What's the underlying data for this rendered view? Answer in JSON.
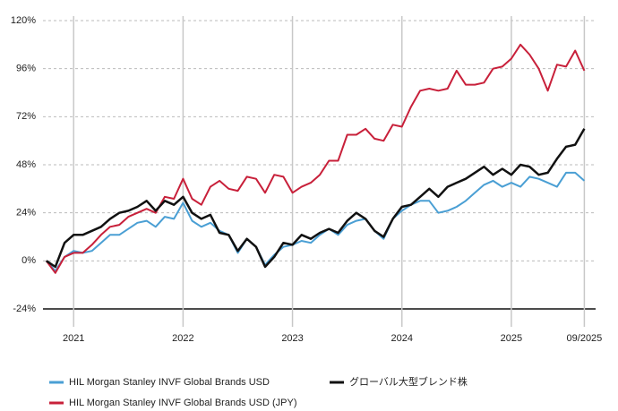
{
  "chart_data": {
    "type": "line",
    "x": [
      2020.75,
      2020.833,
      2020.917,
      2021,
      2021.083,
      2021.167,
      2021.25,
      2021.333,
      2021.417,
      2021.5,
      2021.583,
      2021.667,
      2021.75,
      2021.833,
      2021.917,
      2022,
      2022.083,
      2022.167,
      2022.25,
      2022.333,
      2022.417,
      2022.5,
      2022.583,
      2022.667,
      2022.75,
      2022.833,
      2022.917,
      2023,
      2023.083,
      2023.167,
      2023.25,
      2023.333,
      2023.417,
      2023.5,
      2023.583,
      2023.667,
      2023.75,
      2023.833,
      2023.917,
      2024,
      2024.083,
      2024.167,
      2024.25,
      2024.333,
      2024.417,
      2024.5,
      2024.583,
      2024.667,
      2024.75,
      2024.833,
      2024.917,
      2025,
      2025.083,
      2025.167,
      2025.25,
      2025.333,
      2025.417,
      2025.5,
      2025.583,
      2025.667
    ],
    "series": [
      {
        "name": "HIL Morgan Stanley INVF Global Brands USD",
        "color": "#4a9fd4",
        "values": [
          0,
          -5,
          2,
          5,
          4,
          5,
          9,
          13,
          13,
          16,
          19,
          20,
          17,
          22,
          21,
          29,
          20,
          17,
          19,
          15,
          13,
          4,
          11,
          7,
          -2,
          3,
          7,
          8,
          10,
          9,
          13,
          16,
          13,
          18,
          20,
          21,
          15,
          11,
          21,
          25,
          28,
          30,
          30,
          24,
          25,
          27,
          30,
          34,
          38,
          40,
          37,
          39,
          37,
          42,
          41,
          39,
          37,
          44,
          44,
          40
        ]
      },
      {
        "name": "HIL Morgan Stanley INVF Global Brands USD (JPY)",
        "color": "#c8203a",
        "values": [
          0,
          -6,
          2,
          4,
          4,
          8,
          13,
          17,
          18,
          22,
          24,
          26,
          24,
          32,
          31,
          41,
          31,
          28,
          37,
          40,
          36,
          35,
          42,
          41,
          34,
          43,
          42,
          34,
          37,
          39,
          43,
          50,
          50,
          63,
          63,
          66,
          61,
          60,
          68,
          67,
          77,
          85,
          86,
          85,
          86,
          95,
          88,
          88,
          89,
          96,
          97,
          101,
          108,
          103,
          96,
          85,
          98,
          97,
          105,
          95
        ]
      },
      {
        "name": "グローバル大型ブレンド株",
        "color": "#111111",
        "values": [
          0,
          -3,
          9,
          13,
          13,
          15,
          17,
          21,
          24,
          25,
          27,
          30,
          25,
          30,
          28,
          32,
          24,
          21,
          23,
          14,
          13,
          5,
          11,
          7,
          -3,
          2,
          9,
          8,
          13,
          11,
          14,
          16,
          14,
          20,
          24,
          21,
          15,
          12,
          21,
          27,
          28,
          32,
          36,
          32,
          37,
          39,
          41,
          44,
          47,
          43,
          46,
          43,
          48,
          47,
          43,
          44,
          51,
          57,
          58,
          66
        ]
      }
    ],
    "xlim": [
      2020.72,
      2025.77
    ],
    "xticks": [
      2021,
      2022,
      2023,
      2024,
      2025,
      {
        "value": 2025.667,
        "label": "09/2025"
      }
    ],
    "ylim": [
      -24,
      120
    ],
    "yticks": [
      {
        "value": -24,
        "label": "-24%"
      },
      {
        "value": 0,
        "label": "0%"
      },
      {
        "value": 24,
        "label": "24%"
      },
      {
        "value": 48,
        "label": "48%"
      },
      {
        "value": 72,
        "label": "72%"
      },
      {
        "value": 96,
        "label": "96%"
      },
      {
        "value": 120,
        "label": "120%"
      }
    ],
    "grid": true
  }
}
